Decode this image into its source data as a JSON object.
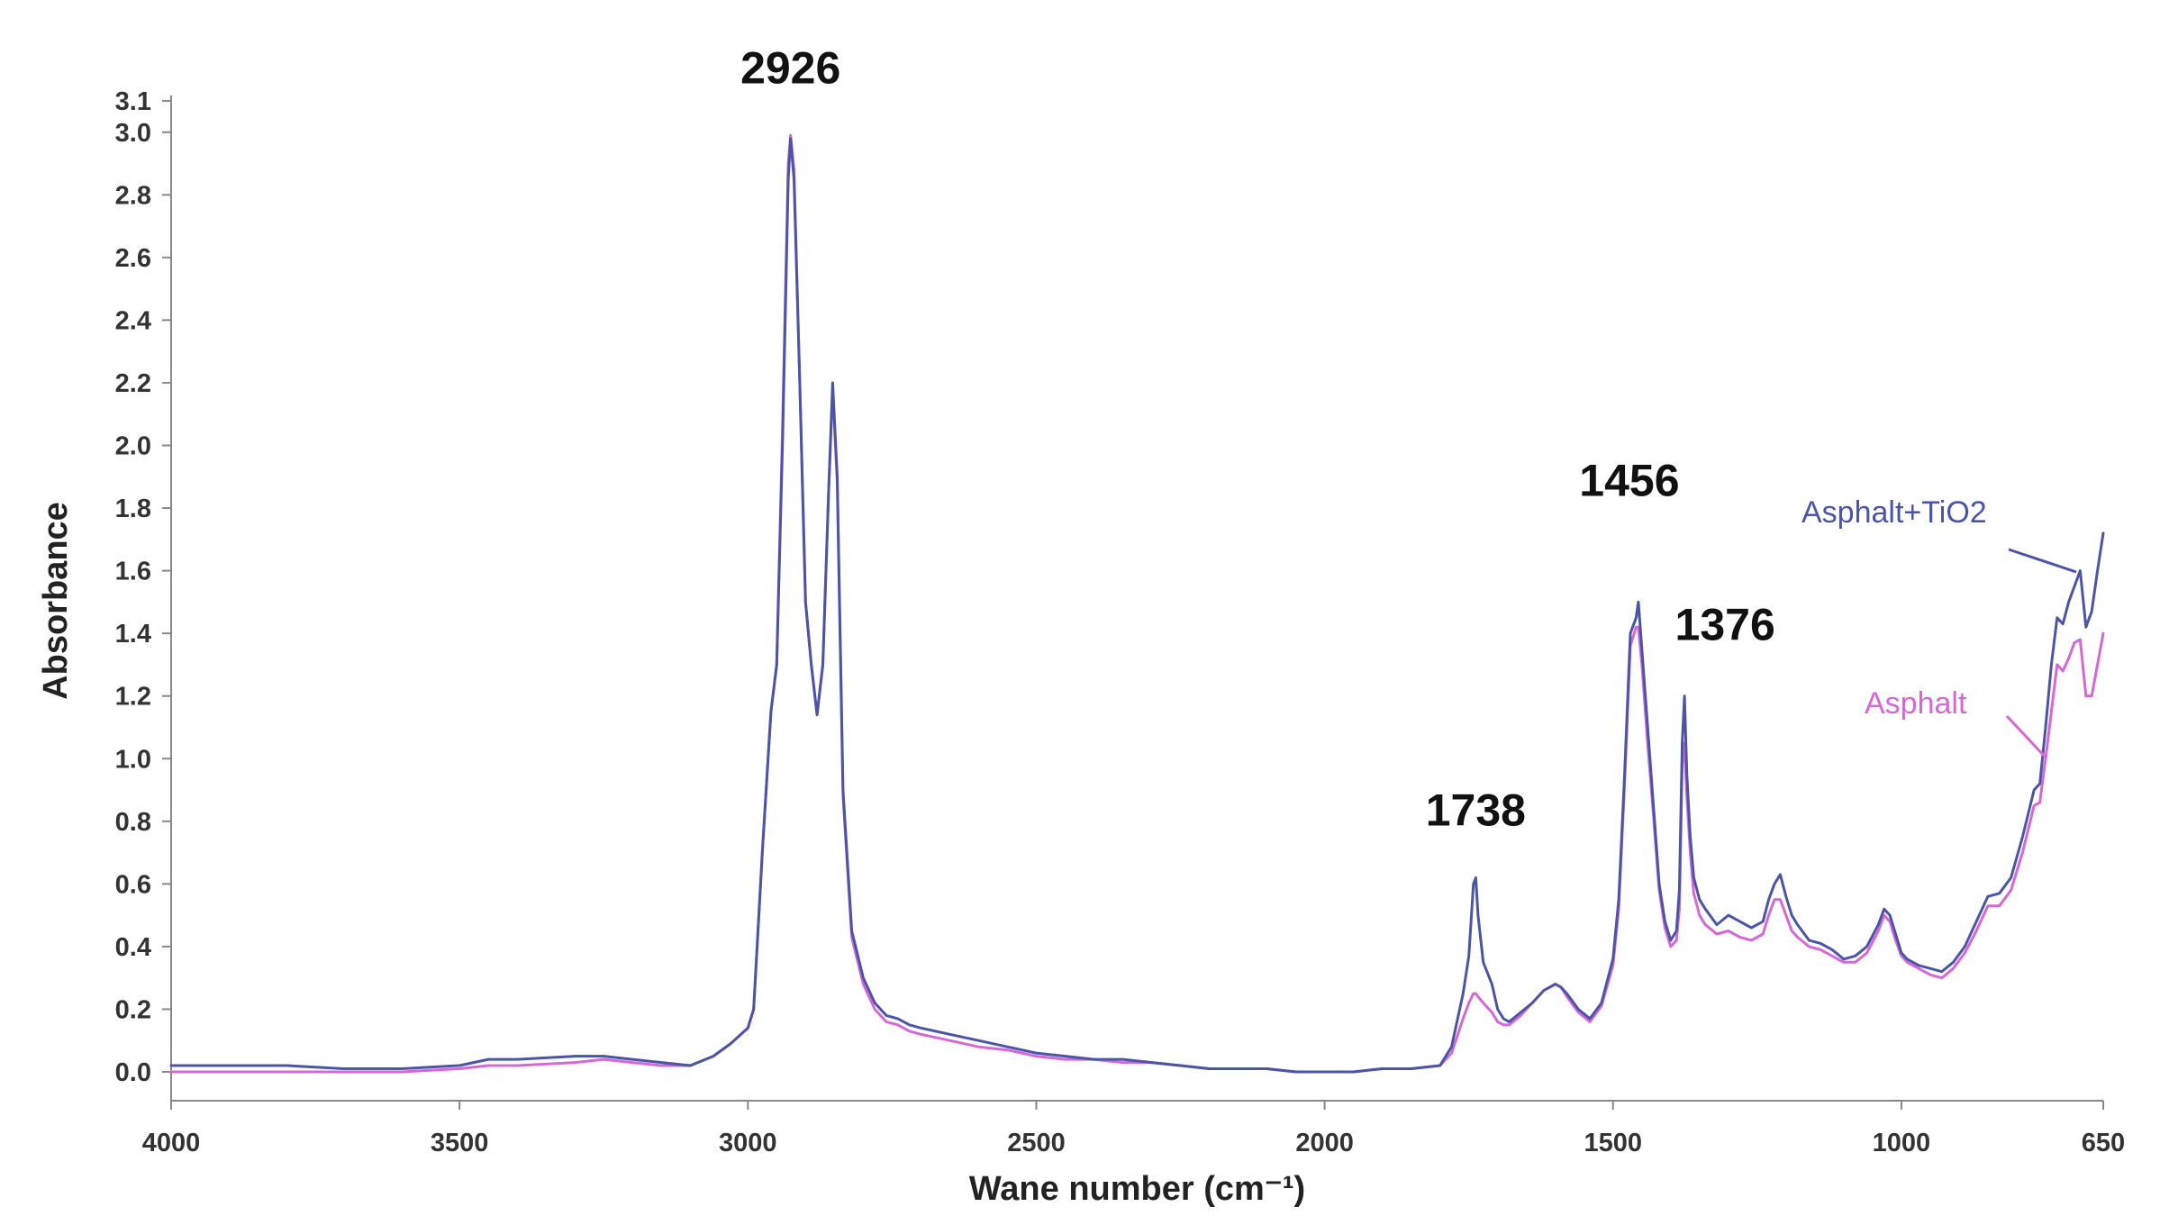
{
  "chart_data": {
    "type": "line",
    "title": "",
    "xlabel": "Wane number (cm⁻¹)",
    "ylabel": "Absorbance",
    "x_reversed": true,
    "xlim": [
      4000,
      650
    ],
    "ylim": [
      0.0,
      3.1
    ],
    "grid": false,
    "x_ticks": [
      4000,
      3500,
      3000,
      2500,
      2000,
      1500,
      1000,
      650
    ],
    "y_ticks": [
      0.0,
      0.2,
      0.4,
      0.6,
      0.8,
      1.0,
      1.2,
      1.4,
      1.6,
      1.8,
      2.0,
      2.2,
      2.4,
      2.6,
      2.8,
      3.0,
      3.1
    ],
    "y_tick_labels": [
      "0.0",
      "0.2",
      "0.4",
      "0.6",
      "0.8",
      "1.0",
      "1.2",
      "1.4",
      "1.6",
      "1.8",
      "2.0",
      "2.2",
      "2.4",
      "2.6",
      "2.8",
      "3.0",
      "3.1"
    ],
    "annotations": [
      {
        "text": "2926",
        "x": 2926
      },
      {
        "text": "1738",
        "x": 1738
      },
      {
        "text": "1456",
        "x": 1456
      },
      {
        "text": "1376",
        "x": 1376
      }
    ],
    "legend_placement": "right, inline labels",
    "series": [
      {
        "name": "Asphalt+TiO2",
        "color": "#4a55a8",
        "x": [
          4000,
          3900,
          3800,
          3700,
          3600,
          3500,
          3450,
          3400,
          3300,
          3250,
          3200,
          3150,
          3100,
          3060,
          3030,
          3000,
          2990,
          2975,
          2960,
          2950,
          2940,
          2930,
          2926,
          2920,
          2910,
          2900,
          2890,
          2880,
          2870,
          2860,
          2853,
          2845,
          2835,
          2820,
          2800,
          2780,
          2760,
          2740,
          2720,
          2700,
          2650,
          2600,
          2550,
          2500,
          2450,
          2400,
          2350,
          2300,
          2250,
          2200,
          2150,
          2100,
          2050,
          2000,
          1950,
          1900,
          1850,
          1800,
          1780,
          1760,
          1750,
          1742,
          1738,
          1734,
          1725,
          1710,
          1700,
          1690,
          1680,
          1660,
          1640,
          1620,
          1600,
          1590,
          1580,
          1560,
          1540,
          1520,
          1500,
          1490,
          1480,
          1470,
          1460,
          1456,
          1450,
          1440,
          1430,
          1420,
          1410,
          1400,
          1390,
          1385,
          1380,
          1376,
          1372,
          1366,
          1360,
          1350,
          1340,
          1320,
          1300,
          1280,
          1260,
          1240,
          1230,
          1220,
          1210,
          1200,
          1190,
          1180,
          1160,
          1140,
          1120,
          1100,
          1080,
          1060,
          1040,
          1030,
          1020,
          1010,
          1000,
          990,
          970,
          950,
          930,
          910,
          890,
          870,
          850,
          830,
          810,
          790,
          770,
          760,
          750,
          740,
          730,
          720,
          710,
          700,
          690,
          680,
          670,
          660,
          650
        ],
        "y": [
          0.02,
          0.02,
          0.02,
          0.01,
          0.01,
          0.02,
          0.04,
          0.04,
          0.05,
          0.05,
          0.04,
          0.03,
          0.02,
          0.05,
          0.09,
          0.14,
          0.2,
          0.7,
          1.15,
          1.3,
          2.0,
          2.85,
          2.98,
          2.85,
          2.2,
          1.5,
          1.3,
          1.14,
          1.3,
          1.85,
          2.2,
          1.9,
          0.9,
          0.45,
          0.3,
          0.22,
          0.18,
          0.17,
          0.15,
          0.14,
          0.12,
          0.1,
          0.08,
          0.06,
          0.05,
          0.04,
          0.04,
          0.03,
          0.02,
          0.01,
          0.01,
          0.01,
          0.0,
          0.0,
          0.0,
          0.01,
          0.01,
          0.02,
          0.08,
          0.25,
          0.37,
          0.6,
          0.62,
          0.5,
          0.35,
          0.28,
          0.2,
          0.17,
          0.16,
          0.19,
          0.22,
          0.26,
          0.28,
          0.27,
          0.25,
          0.2,
          0.17,
          0.22,
          0.36,
          0.55,
          0.95,
          1.4,
          1.45,
          1.5,
          1.35,
          1.1,
          0.85,
          0.6,
          0.48,
          0.42,
          0.45,
          0.58,
          1.05,
          1.2,
          0.95,
          0.75,
          0.62,
          0.55,
          0.52,
          0.47,
          0.5,
          0.48,
          0.46,
          0.48,
          0.55,
          0.6,
          0.63,
          0.56,
          0.5,
          0.47,
          0.42,
          0.41,
          0.39,
          0.36,
          0.37,
          0.4,
          0.47,
          0.52,
          0.5,
          0.44,
          0.38,
          0.36,
          0.34,
          0.33,
          0.32,
          0.35,
          0.4,
          0.48,
          0.56,
          0.57,
          0.62,
          0.75,
          0.9,
          0.92,
          1.1,
          1.3,
          1.45,
          1.43,
          1.5,
          1.55,
          1.6,
          1.42,
          1.47,
          1.6,
          1.72
        ]
      },
      {
        "name": "Asphalt",
        "color": "#d767d7",
        "x": [
          4000,
          3900,
          3800,
          3700,
          3600,
          3500,
          3450,
          3400,
          3300,
          3250,
          3200,
          3150,
          3100,
          3060,
          3030,
          3000,
          2990,
          2975,
          2960,
          2950,
          2940,
          2930,
          2926,
          2920,
          2910,
          2900,
          2890,
          2880,
          2870,
          2860,
          2853,
          2845,
          2835,
          2820,
          2800,
          2780,
          2760,
          2740,
          2720,
          2700,
          2650,
          2600,
          2550,
          2500,
          2450,
          2400,
          2350,
          2300,
          2250,
          2200,
          2150,
          2100,
          2050,
          2000,
          1950,
          1900,
          1850,
          1800,
          1780,
          1760,
          1750,
          1742,
          1738,
          1734,
          1725,
          1710,
          1700,
          1690,
          1680,
          1660,
          1640,
          1620,
          1600,
          1590,
          1580,
          1560,
          1540,
          1520,
          1500,
          1490,
          1480,
          1470,
          1460,
          1456,
          1450,
          1440,
          1430,
          1420,
          1410,
          1400,
          1390,
          1385,
          1380,
          1376,
          1372,
          1366,
          1360,
          1350,
          1340,
          1320,
          1300,
          1280,
          1260,
          1240,
          1230,
          1220,
          1210,
          1200,
          1190,
          1180,
          1160,
          1140,
          1120,
          1100,
          1080,
          1060,
          1040,
          1030,
          1020,
          1010,
          1000,
          990,
          970,
          950,
          930,
          910,
          890,
          870,
          850,
          830,
          810,
          790,
          770,
          760,
          750,
          740,
          730,
          720,
          710,
          700,
          690,
          680,
          670,
          660,
          650
        ],
        "y": [
          0.0,
          0.0,
          0.0,
          0.0,
          0.0,
          0.01,
          0.02,
          0.02,
          0.03,
          0.04,
          0.03,
          0.02,
          0.02,
          0.05,
          0.09,
          0.14,
          0.2,
          0.7,
          1.15,
          1.3,
          2.05,
          2.9,
          2.99,
          2.88,
          2.2,
          1.5,
          1.3,
          1.14,
          1.3,
          1.85,
          2.18,
          1.88,
          0.88,
          0.43,
          0.28,
          0.2,
          0.16,
          0.15,
          0.13,
          0.12,
          0.1,
          0.08,
          0.07,
          0.05,
          0.04,
          0.04,
          0.03,
          0.03,
          0.02,
          0.01,
          0.01,
          0.01,
          0.0,
          0.0,
          0.0,
          0.01,
          0.01,
          0.02,
          0.06,
          0.17,
          0.22,
          0.25,
          0.25,
          0.24,
          0.22,
          0.19,
          0.16,
          0.15,
          0.15,
          0.18,
          0.22,
          0.26,
          0.28,
          0.27,
          0.24,
          0.19,
          0.16,
          0.21,
          0.34,
          0.52,
          0.92,
          1.36,
          1.42,
          1.42,
          1.3,
          1.05,
          0.82,
          0.58,
          0.46,
          0.4,
          0.42,
          0.52,
          0.98,
          1.05,
          0.88,
          0.7,
          0.57,
          0.5,
          0.47,
          0.44,
          0.45,
          0.43,
          0.42,
          0.44,
          0.5,
          0.55,
          0.55,
          0.5,
          0.45,
          0.43,
          0.4,
          0.39,
          0.37,
          0.35,
          0.35,
          0.38,
          0.45,
          0.5,
          0.48,
          0.42,
          0.37,
          0.35,
          0.33,
          0.31,
          0.3,
          0.33,
          0.38,
          0.45,
          0.53,
          0.53,
          0.58,
          0.7,
          0.85,
          0.86,
          1.0,
          1.15,
          1.3,
          1.28,
          1.32,
          1.37,
          1.38,
          1.2,
          1.2,
          1.3,
          1.4
        ]
      }
    ]
  }
}
